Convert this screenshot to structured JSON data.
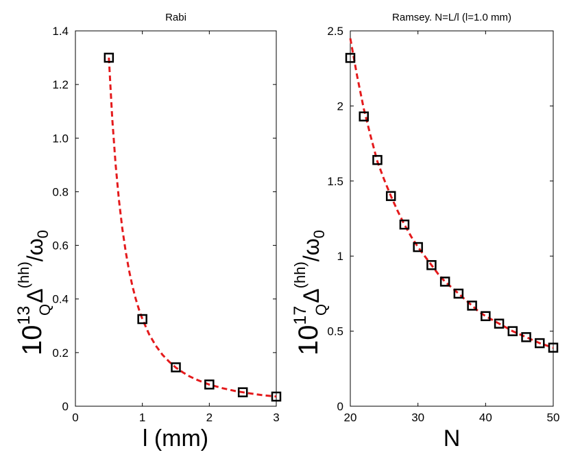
{
  "chart_data": [
    {
      "type": "scatter",
      "title": "Rabi",
      "xlabel": "l (mm)",
      "ylabel": {
        "power_base": "10",
        "power_exp": "13",
        "symbol": "Δ",
        "superscript": "(hh)",
        "subscript": "Q",
        "denominator": "/ω",
        "denominator_subscript": "0"
      },
      "xlim": [
        0,
        3
      ],
      "ylim": [
        0,
        1.4
      ],
      "xticks": [
        0,
        1,
        2,
        3
      ],
      "xtick_labels": [
        "0",
        "1",
        "2",
        "3"
      ],
      "yticks": [
        0,
        0.2,
        0.4,
        0.6,
        0.8,
        1.0,
        1.2,
        1.4
      ],
      "ytick_labels": [
        "0",
        "0.2",
        "0.4",
        "0.6",
        "0.8",
        "1.0",
        "1.2",
        "1.4"
      ],
      "series": [
        {
          "name": "data",
          "style": "markers",
          "marker": "square",
          "color": "#000000",
          "x": [
            0.5,
            1.0,
            1.5,
            2.0,
            2.5,
            3.0
          ],
          "y": [
            1.3,
            0.325,
            0.145,
            0.081,
            0.052,
            0.036
          ]
        },
        {
          "name": "fit",
          "style": "dashed-line",
          "color": "#e41a1c",
          "x": [
            0.5,
            0.55,
            0.6,
            0.65,
            0.7,
            0.75,
            0.8,
            0.85,
            0.9,
            0.95,
            1.0,
            1.1,
            1.2,
            1.3,
            1.4,
            1.5,
            1.6,
            1.7,
            1.8,
            1.9,
            2.0,
            2.2,
            2.4,
            2.6,
            2.8,
            3.0
          ],
          "y": [
            1.3,
            1.074,
            0.903,
            0.769,
            0.663,
            0.578,
            0.508,
            0.45,
            0.401,
            0.36,
            0.325,
            0.269,
            0.226,
            0.192,
            0.166,
            0.144,
            0.127,
            0.112,
            0.1,
            0.09,
            0.081,
            0.067,
            0.056,
            0.048,
            0.041,
            0.036
          ]
        }
      ]
    },
    {
      "type": "scatter",
      "title": "Ramsey. N=L/l (l=1.0 mm)",
      "xlabel": "N",
      "ylabel": {
        "power_base": "10",
        "power_exp": "17",
        "symbol": "Δ",
        "superscript": "(hh)",
        "subscript": "Q",
        "denominator": "/ω",
        "denominator_subscript": "0"
      },
      "xlim": [
        20,
        50
      ],
      "ylim": [
        0,
        2.5
      ],
      "xticks": [
        20,
        30,
        40,
        50
      ],
      "xtick_labels": [
        "20",
        "30",
        "40",
        "50"
      ],
      "yticks": [
        0,
        0.5,
        1,
        1.5,
        2,
        2.5
      ],
      "ytick_labels": [
        "0",
        "0.5",
        "1",
        "1.5",
        "2",
        "2.5"
      ],
      "series": [
        {
          "name": "data",
          "style": "markers",
          "marker": "square",
          "color": "#000000",
          "x": [
            20,
            22,
            24,
            26,
            28,
            30,
            32,
            34,
            36,
            38,
            40,
            42,
            44,
            46,
            48,
            50
          ],
          "y": [
            2.32,
            1.93,
            1.64,
            1.4,
            1.21,
            1.06,
            0.94,
            0.83,
            0.75,
            0.67,
            0.6,
            0.55,
            0.5,
            0.46,
            0.42,
            0.39
          ]
        },
        {
          "name": "fit",
          "style": "dashed-line",
          "color": "#e41a1c",
          "x": [
            20,
            21,
            22,
            23,
            24,
            25,
            26,
            27,
            28,
            29,
            30,
            31,
            32,
            33,
            34,
            35,
            36,
            37,
            38,
            39,
            40,
            41,
            42,
            43,
            44,
            45,
            46,
            47,
            48,
            49,
            50
          ],
          "y": [
            2.45,
            2.2,
            1.98,
            1.8,
            1.63,
            1.51,
            1.4,
            1.3,
            1.21,
            1.13,
            1.06,
            1.0,
            0.94,
            0.88,
            0.83,
            0.79,
            0.75,
            0.71,
            0.67,
            0.63,
            0.6,
            0.575,
            0.55,
            0.525,
            0.5,
            0.48,
            0.46,
            0.44,
            0.42,
            0.405,
            0.39
          ]
        }
      ]
    }
  ]
}
